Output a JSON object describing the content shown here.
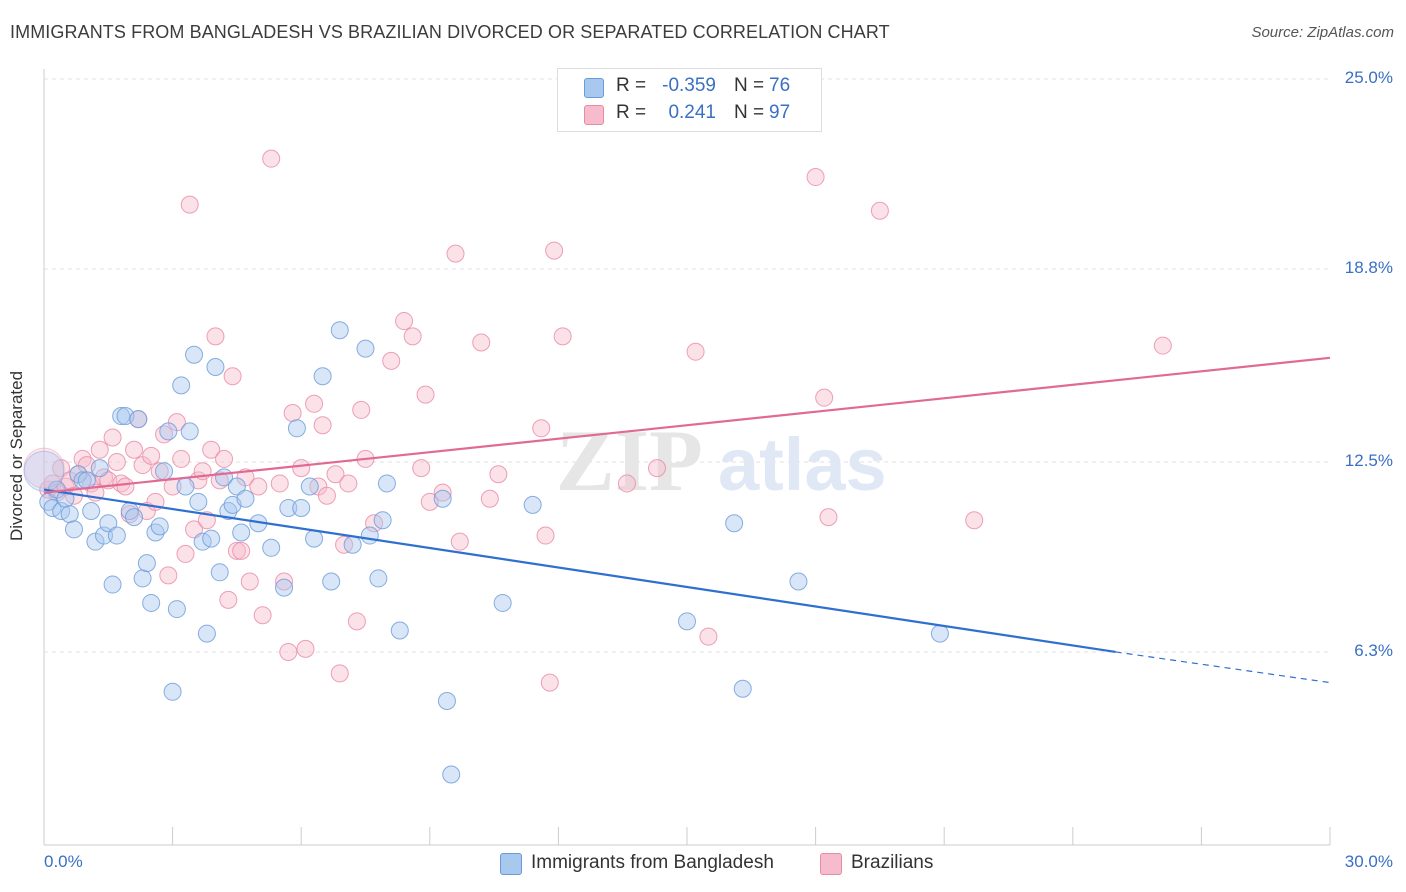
{
  "title": "IMMIGRANTS FROM BANGLADESH VS BRAZILIAN DIVORCED OR SEPARATED CORRELATION CHART",
  "source": "Source: ZipAtlas.com",
  "watermark": {
    "zip": "ZIP",
    "atlas": "atlas"
  },
  "legend": {
    "rows": [
      {
        "r_label": "R =",
        "r_value": "-0.359",
        "n_label": "N =",
        "n_value": "76",
        "color": "#a9c8f0",
        "border": "#6a9bd8"
      },
      {
        "r_label": "R =",
        "r_value": "0.241",
        "n_label": "N =",
        "n_value": "97",
        "color": "#f6bccd",
        "border": "#e88aa6"
      }
    ]
  },
  "bottom_legend": [
    {
      "label": "Immigrants from Bangladesh",
      "color": "#a9c8f0",
      "border": "#6a9bd8"
    },
    {
      "label": "Brazilians",
      "color": "#f6bccd",
      "border": "#e88aa6"
    }
  ],
  "chart_data": {
    "type": "scatter",
    "ylabel": "Divorced or Separated",
    "xlim": [
      0,
      30
    ],
    "ylim": [
      0,
      25
    ],
    "x_tick_labels": [
      {
        "value": 0,
        "label": "0.0%"
      },
      {
        "value": 30,
        "label": "30.0%"
      }
    ],
    "y_tick_labels": [
      {
        "value": 6.3,
        "label": "6.3%"
      },
      {
        "value": 12.5,
        "label": "12.5%"
      },
      {
        "value": 18.8,
        "label": "18.8%"
      },
      {
        "value": 25.0,
        "label": "25.0%"
      }
    ],
    "grid": true,
    "series": [
      {
        "name": "Immigrants from Bangladesh",
        "color": "#6a9bd8",
        "fill": "#a9c8f0",
        "trend": {
          "x0": 0,
          "y0": 11.6,
          "x1": 25.0,
          "y1": 6.3,
          "dash_to_x": 30,
          "dash_to_y": 5.3
        },
        "points": [
          [
            0.1,
            11.2
          ],
          [
            0.2,
            11.0
          ],
          [
            0.3,
            11.6
          ],
          [
            0.4,
            10.9
          ],
          [
            0.5,
            11.3
          ],
          [
            0.6,
            10.8
          ],
          [
            0.7,
            10.3
          ],
          [
            0.8,
            12.1
          ],
          [
            0.9,
            11.9
          ],
          [
            1.0,
            11.9
          ],
          [
            1.1,
            10.9
          ],
          [
            1.2,
            9.9
          ],
          [
            1.3,
            12.3
          ],
          [
            1.4,
            10.1
          ],
          [
            1.5,
            10.5
          ],
          [
            1.6,
            8.5
          ],
          [
            1.7,
            10.1
          ],
          [
            1.8,
            14.0
          ],
          [
            1.9,
            14.0
          ],
          [
            2.0,
            10.9
          ],
          [
            2.1,
            10.7
          ],
          [
            2.2,
            13.9
          ],
          [
            2.3,
            8.7
          ],
          [
            2.4,
            9.2
          ],
          [
            2.5,
            7.9
          ],
          [
            2.6,
            10.2
          ],
          [
            2.7,
            10.4
          ],
          [
            2.8,
            12.2
          ],
          [
            2.9,
            13.5
          ],
          [
            3.0,
            5.0
          ],
          [
            3.1,
            7.7
          ],
          [
            3.2,
            15.0
          ],
          [
            3.3,
            11.7
          ],
          [
            3.4,
            13.5
          ],
          [
            3.5,
            16.0
          ],
          [
            3.6,
            11.2
          ],
          [
            3.7,
            9.9
          ],
          [
            3.8,
            6.9
          ],
          [
            3.9,
            10.0
          ],
          [
            4.0,
            15.6
          ],
          [
            4.1,
            8.9
          ],
          [
            4.2,
            12.0
          ],
          [
            4.3,
            10.9
          ],
          [
            4.4,
            11.1
          ],
          [
            4.5,
            11.7
          ],
          [
            4.6,
            10.2
          ],
          [
            4.7,
            11.3
          ],
          [
            5.0,
            10.5
          ],
          [
            5.3,
            9.7
          ],
          [
            5.6,
            8.4
          ],
          [
            5.7,
            11.0
          ],
          [
            5.9,
            13.6
          ],
          [
            6.0,
            11.0
          ],
          [
            6.2,
            11.7
          ],
          [
            6.3,
            10.0
          ],
          [
            6.5,
            15.3
          ],
          [
            6.7,
            8.6
          ],
          [
            6.9,
            16.8
          ],
          [
            7.2,
            9.8
          ],
          [
            7.5,
            16.2
          ],
          [
            7.6,
            10.1
          ],
          [
            7.8,
            8.7
          ],
          [
            7.9,
            10.6
          ],
          [
            8.0,
            11.8
          ],
          [
            8.3,
            7.0
          ],
          [
            9.3,
            11.3
          ],
          [
            9.4,
            4.7
          ],
          [
            9.5,
            2.3
          ],
          [
            10.7,
            7.9
          ],
          [
            11.4,
            11.1
          ],
          [
            15.0,
            7.3
          ],
          [
            16.1,
            10.5
          ],
          [
            16.3,
            5.1
          ],
          [
            17.6,
            8.6
          ],
          [
            20.9,
            6.9
          ],
          [
            0.0,
            12.2
          ]
        ]
      },
      {
        "name": "Brazilians",
        "color": "#e88aa6",
        "fill": "#f6bccd",
        "trend": {
          "x0": 0,
          "y0": 11.5,
          "x1": 30.0,
          "y1": 15.9
        },
        "points": [
          [
            0.1,
            11.6
          ],
          [
            0.2,
            11.8
          ],
          [
            0.3,
            11.5
          ],
          [
            0.4,
            12.3
          ],
          [
            0.5,
            11.7
          ],
          [
            0.6,
            11.9
          ],
          [
            0.7,
            11.4
          ],
          [
            0.8,
            12.1
          ],
          [
            0.9,
            12.6
          ],
          [
            1.0,
            12.4
          ],
          [
            1.1,
            11.8
          ],
          [
            1.2,
            11.5
          ],
          [
            1.3,
            12.9
          ],
          [
            1.4,
            12.0
          ],
          [
            1.5,
            11.9
          ],
          [
            1.6,
            13.3
          ],
          [
            1.7,
            12.5
          ],
          [
            1.8,
            11.8
          ],
          [
            1.9,
            11.7
          ],
          [
            2.0,
            10.8
          ],
          [
            2.1,
            12.9
          ],
          [
            2.2,
            13.9
          ],
          [
            2.3,
            12.4
          ],
          [
            2.4,
            10.9
          ],
          [
            2.5,
            12.7
          ],
          [
            2.6,
            11.2
          ],
          [
            2.7,
            12.2
          ],
          [
            2.8,
            13.4
          ],
          [
            2.9,
            8.8
          ],
          [
            3.0,
            11.7
          ],
          [
            3.1,
            13.8
          ],
          [
            3.2,
            12.6
          ],
          [
            3.3,
            9.5
          ],
          [
            3.4,
            20.9
          ],
          [
            3.5,
            10.3
          ],
          [
            3.6,
            11.9
          ],
          [
            3.7,
            12.2
          ],
          [
            3.8,
            10.6
          ],
          [
            3.9,
            12.9
          ],
          [
            4.0,
            16.6
          ],
          [
            4.1,
            11.9
          ],
          [
            4.2,
            12.6
          ],
          [
            4.3,
            8.0
          ],
          [
            4.4,
            15.3
          ],
          [
            4.5,
            9.6
          ],
          [
            4.6,
            9.6
          ],
          [
            4.7,
            12.0
          ],
          [
            4.8,
            8.6
          ],
          [
            5.0,
            11.7
          ],
          [
            5.1,
            7.5
          ],
          [
            5.3,
            22.4
          ],
          [
            5.5,
            11.8
          ],
          [
            5.6,
            8.6
          ],
          [
            5.8,
            14.1
          ],
          [
            6.0,
            12.3
          ],
          [
            6.1,
            6.4
          ],
          [
            6.3,
            14.4
          ],
          [
            6.4,
            11.7
          ],
          [
            6.5,
            13.7
          ],
          [
            6.6,
            11.4
          ],
          [
            6.8,
            12.1
          ],
          [
            7.0,
            9.8
          ],
          [
            7.1,
            11.8
          ],
          [
            7.3,
            7.3
          ],
          [
            7.4,
            14.2
          ],
          [
            7.5,
            12.6
          ],
          [
            7.7,
            10.5
          ],
          [
            8.1,
            15.8
          ],
          [
            8.4,
            17.1
          ],
          [
            8.6,
            16.6
          ],
          [
            8.8,
            12.3
          ],
          [
            8.9,
            14.7
          ],
          [
            9.0,
            11.2
          ],
          [
            9.3,
            11.5
          ],
          [
            9.6,
            19.3
          ],
          [
            9.7,
            9.9
          ],
          [
            10.2,
            16.4
          ],
          [
            10.4,
            11.3
          ],
          [
            10.6,
            12.1
          ],
          [
            11.6,
            13.6
          ],
          [
            11.7,
            10.1
          ],
          [
            11.8,
            5.3
          ],
          [
            11.9,
            19.4
          ],
          [
            12.1,
            16.6
          ],
          [
            13.6,
            11.8
          ],
          [
            14.3,
            12.3
          ],
          [
            15.2,
            16.1
          ],
          [
            15.5,
            6.8
          ],
          [
            18.0,
            21.8
          ],
          [
            18.2,
            14.6
          ],
          [
            18.3,
            10.7
          ],
          [
            19.5,
            20.7
          ],
          [
            21.7,
            10.6
          ],
          [
            26.1,
            16.3
          ],
          [
            6.9,
            5.6
          ],
          [
            5.7,
            6.3
          ],
          [
            0.0,
            12.3
          ]
        ]
      }
    ]
  }
}
